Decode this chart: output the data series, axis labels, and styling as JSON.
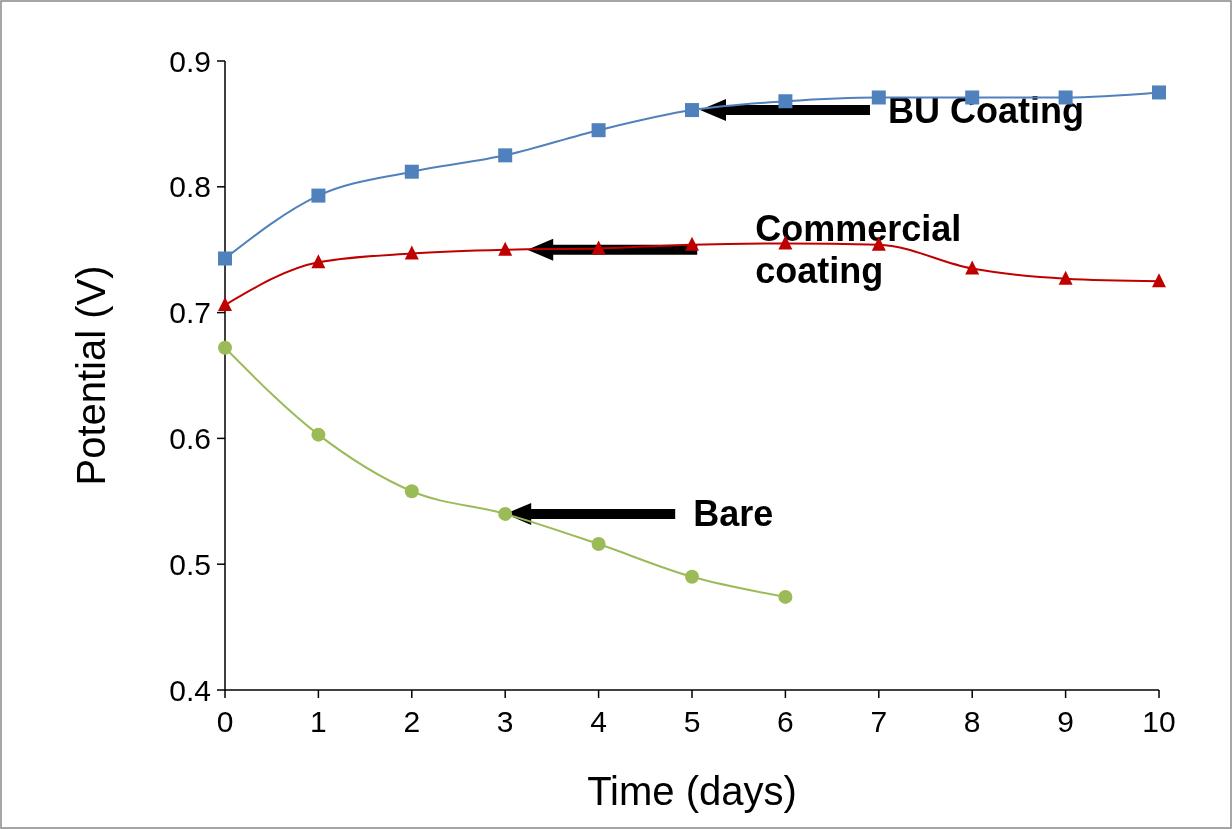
{
  "chart_data": {
    "type": "line",
    "xlabel": "Time (days)",
    "ylabel": "Potential (V)",
    "x": [
      0,
      1,
      2,
      3,
      4,
      5,
      6,
      7,
      8,
      9,
      10
    ],
    "xlim": [
      0,
      10
    ],
    "xticks": [
      0,
      1,
      2,
      3,
      4,
      5,
      6,
      7,
      8,
      9,
      10
    ],
    "ylim": [
      0.4,
      0.9
    ],
    "yticks": [
      {
        "value": 0.4,
        "label": "0.4"
      },
      {
        "value": 0.5,
        "label": "0.5"
      },
      {
        "value": 0.6,
        "label": "0.6"
      },
      {
        "value": 0.7,
        "label": "0.7"
      },
      {
        "value": 0.8,
        "label": "0.8"
      },
      {
        "value": 0.9,
        "label": "0.9"
      }
    ],
    "grid": false,
    "legend": false,
    "series": [
      {
        "name": "BU Coating",
        "color": "#4f81bd",
        "marker": "square",
        "values": [
          0.743,
          0.793,
          0.812,
          0.825,
          0.845,
          0.861,
          0.868,
          0.871,
          0.871,
          0.871,
          0.875
        ]
      },
      {
        "name": "Commercial coating",
        "color": "#c00000",
        "marker": "triangle",
        "values": [
          0.706,
          0.74,
          0.747,
          0.75,
          0.751,
          0.754,
          0.755,
          0.754,
          0.735,
          0.727,
          0.725
        ]
      },
      {
        "name": "Bare",
        "color": "#9bbb59",
        "marker": "circle",
        "values": [
          0.672,
          0.603,
          0.558,
          0.54,
          0.516,
          0.49,
          0.474,
          null,
          null,
          null,
          null
        ]
      }
    ]
  }
}
